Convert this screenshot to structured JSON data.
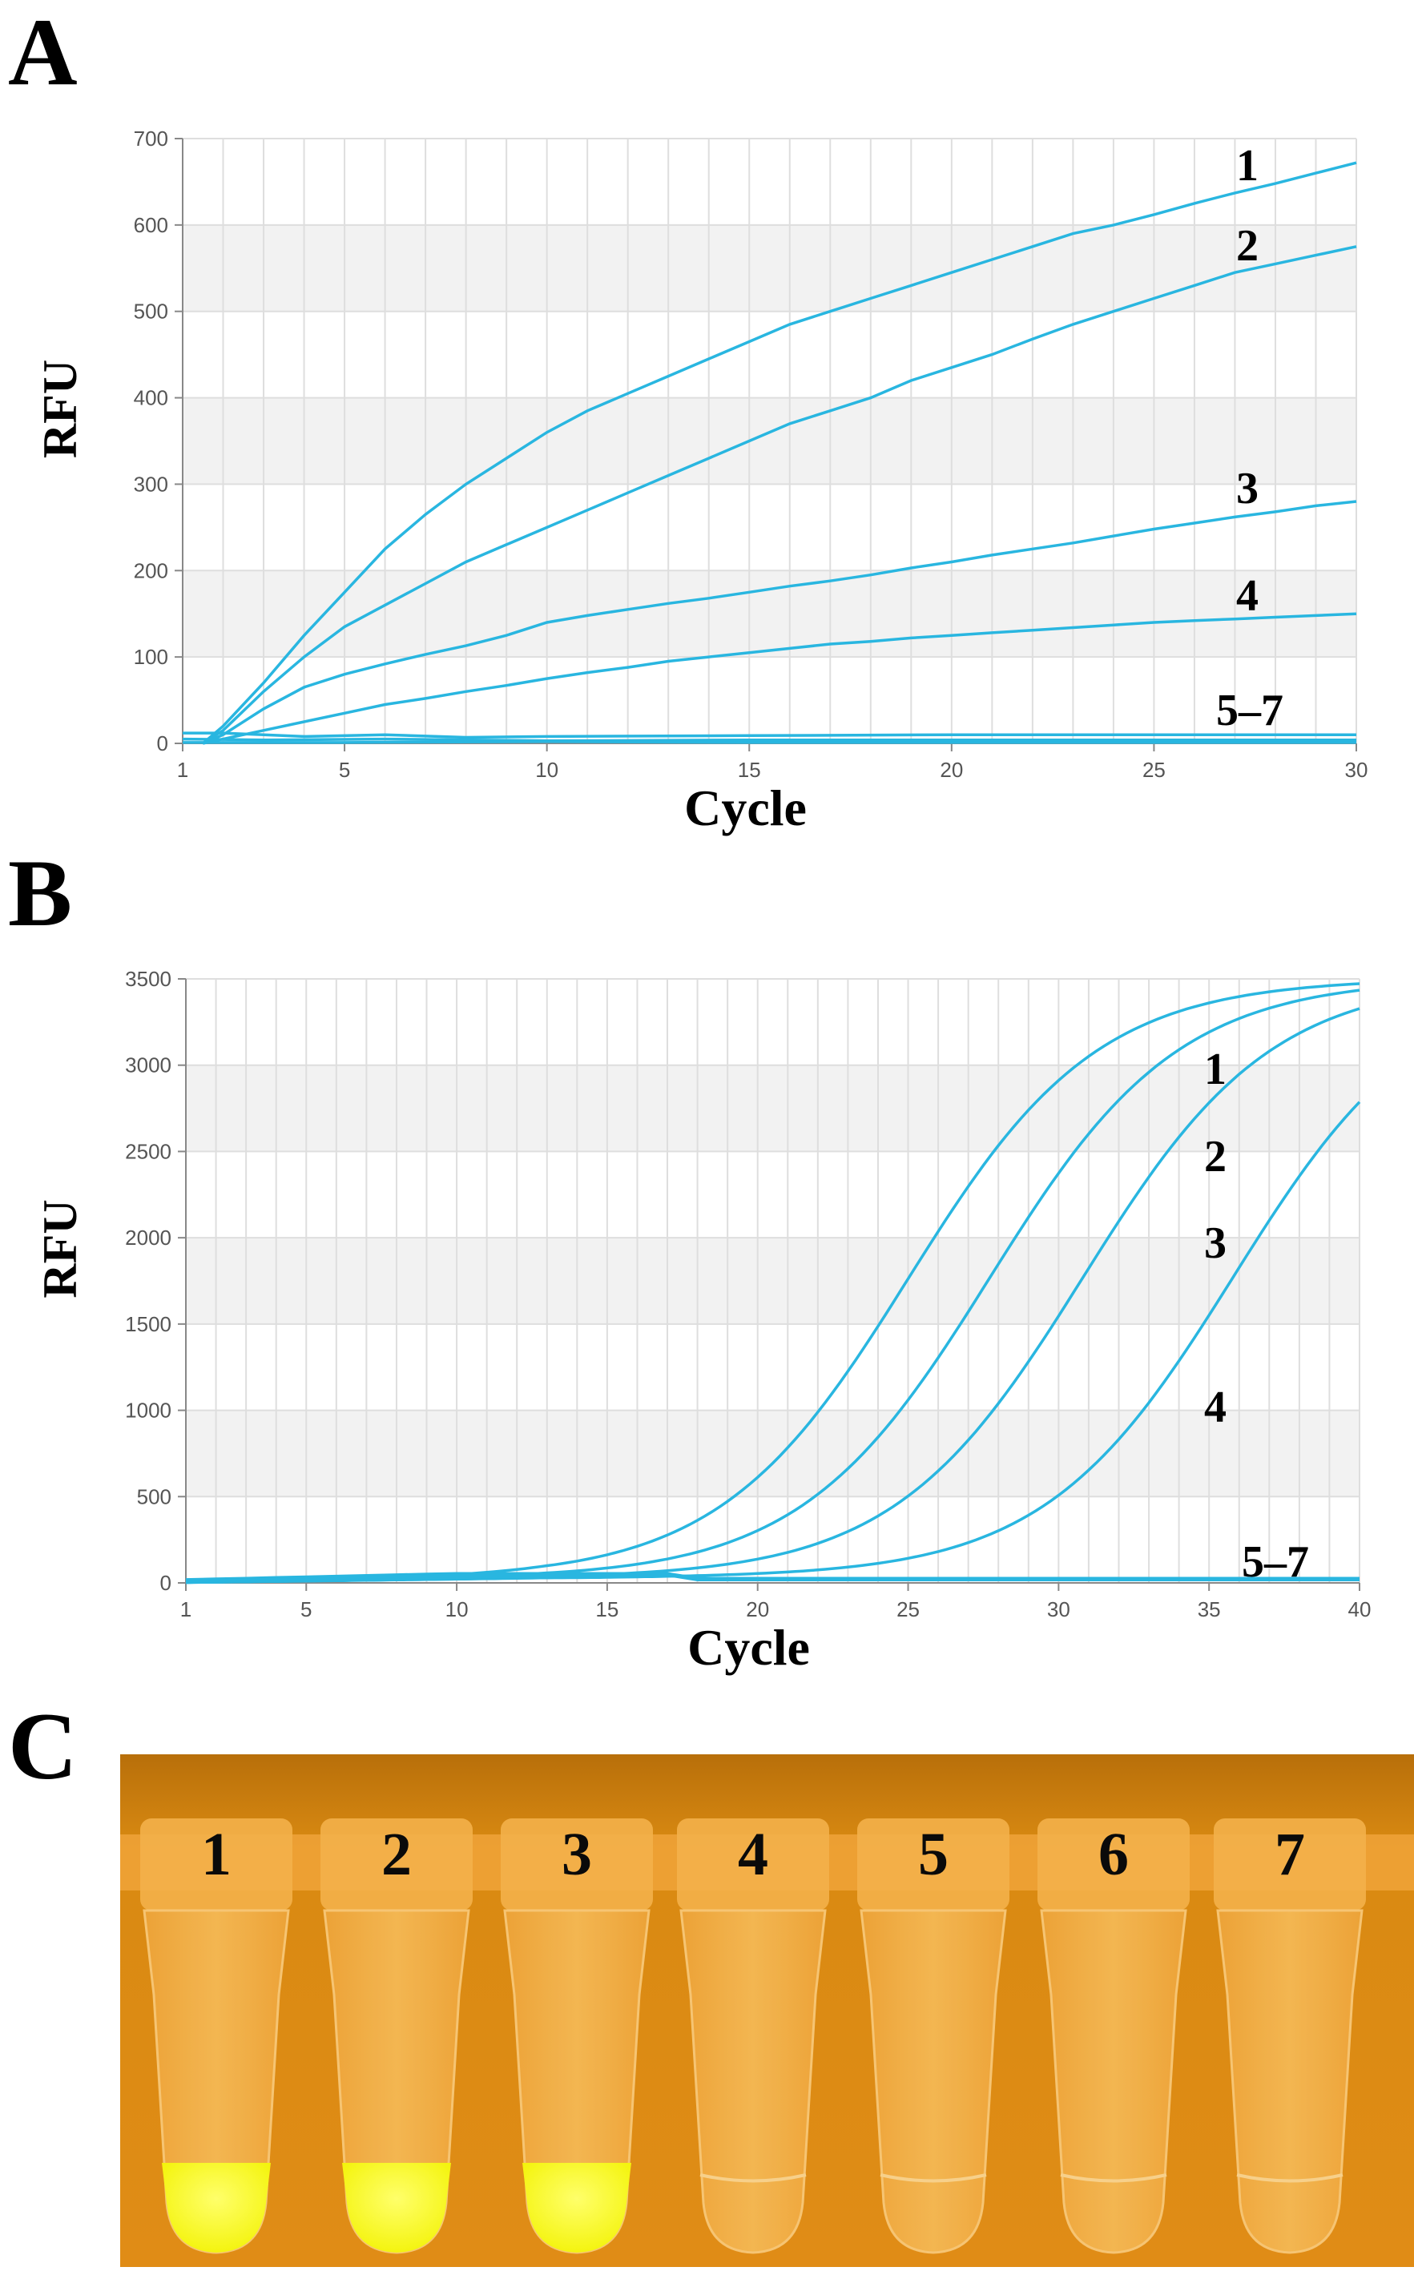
{
  "panels": {
    "a": {
      "letter": "A"
    },
    "b": {
      "letter": "B"
    },
    "c": {
      "letter": "C"
    }
  },
  "chart_data": [
    {
      "id": "A",
      "type": "line",
      "xlabel": "Cycle",
      "ylabel": "RFU",
      "xlim": [
        1,
        30
      ],
      "ylim": [
        0,
        700
      ],
      "xticks": [
        1,
        5,
        10,
        15,
        20,
        25,
        30
      ],
      "yticks": [
        0,
        100,
        200,
        300,
        400,
        500,
        600,
        700
      ],
      "grid": true,
      "line_color": "#29b6e0",
      "series": [
        {
          "label": "1",
          "points": [
            [
              1.5,
              0
            ],
            [
              2,
              20
            ],
            [
              3,
              70
            ],
            [
              4,
              125
            ],
            [
              5,
              175
            ],
            [
              6,
              225
            ],
            [
              7,
              265
            ],
            [
              8,
              300
            ],
            [
              9,
              330
            ],
            [
              10,
              360
            ],
            [
              11,
              385
            ],
            [
              12,
              405
            ],
            [
              13,
              425
            ],
            [
              14,
              445
            ],
            [
              15,
              465
            ],
            [
              16,
              485
            ],
            [
              17,
              500
            ],
            [
              18,
              515
            ],
            [
              19,
              530
            ],
            [
              20,
              545
            ],
            [
              21,
              560
            ],
            [
              22,
              575
            ],
            [
              23,
              590
            ],
            [
              24,
              600
            ],
            [
              25,
              612
            ],
            [
              26,
              625
            ],
            [
              27,
              637
            ],
            [
              28,
              648
            ],
            [
              29,
              660
            ],
            [
              30,
              672
            ]
          ]
        },
        {
          "label": "2",
          "points": [
            [
              1.5,
              0
            ],
            [
              2,
              15
            ],
            [
              3,
              60
            ],
            [
              4,
              100
            ],
            [
              5,
              135
            ],
            [
              6,
              160
            ],
            [
              7,
              185
            ],
            [
              8,
              210
            ],
            [
              9,
              230
            ],
            [
              10,
              250
            ],
            [
              11,
              270
            ],
            [
              12,
              290
            ],
            [
              13,
              310
            ],
            [
              14,
              330
            ],
            [
              15,
              350
            ],
            [
              16,
              370
            ],
            [
              17,
              385
            ],
            [
              18,
              400
            ],
            [
              19,
              420
            ],
            [
              20,
              435
            ],
            [
              21,
              450
            ],
            [
              22,
              468
            ],
            [
              23,
              485
            ],
            [
              24,
              500
            ],
            [
              25,
              515
            ],
            [
              26,
              530
            ],
            [
              27,
              545
            ],
            [
              28,
              555
            ],
            [
              29,
              565
            ],
            [
              30,
              575
            ]
          ]
        },
        {
          "label": "3",
          "points": [
            [
              1.5,
              0
            ],
            [
              2,
              10
            ],
            [
              3,
              40
            ],
            [
              4,
              65
            ],
            [
              5,
              80
            ],
            [
              6,
              92
            ],
            [
              7,
              103
            ],
            [
              8,
              113
            ],
            [
              9,
              125
            ],
            [
              10,
              140
            ],
            [
              11,
              148
            ],
            [
              12,
              155
            ],
            [
              13,
              162
            ],
            [
              14,
              168
            ],
            [
              15,
              175
            ],
            [
              16,
              182
            ],
            [
              17,
              188
            ],
            [
              18,
              195
            ],
            [
              19,
              203
            ],
            [
              20,
              210
            ],
            [
              21,
              218
            ],
            [
              22,
              225
            ],
            [
              23,
              232
            ],
            [
              24,
              240
            ],
            [
              25,
              248
            ],
            [
              26,
              255
            ],
            [
              27,
              262
            ],
            [
              28,
              268
            ],
            [
              29,
              275
            ],
            [
              30,
              280
            ]
          ]
        },
        {
          "label": "4",
          "points": [
            [
              1.5,
              0
            ],
            [
              2,
              5
            ],
            [
              3,
              15
            ],
            [
              4,
              25
            ],
            [
              5,
              35
            ],
            [
              6,
              45
            ],
            [
              7,
              52
            ],
            [
              8,
              60
            ],
            [
              9,
              67
            ],
            [
              10,
              75
            ],
            [
              11,
              82
            ],
            [
              12,
              88
            ],
            [
              13,
              95
            ],
            [
              14,
              100
            ],
            [
              15,
              105
            ],
            [
              16,
              110
            ],
            [
              17,
              115
            ],
            [
              18,
              118
            ],
            [
              19,
              122
            ],
            [
              20,
              125
            ],
            [
              21,
              128
            ],
            [
              22,
              131
            ],
            [
              23,
              134
            ],
            [
              24,
              137
            ],
            [
              25,
              140
            ],
            [
              26,
              142
            ],
            [
              27,
              144
            ],
            [
              28,
              146
            ],
            [
              29,
              148
            ],
            [
              30,
              150
            ]
          ]
        },
        {
          "label": "5–7",
          "points": [
            [
              1,
              12
            ],
            [
              2,
              12
            ],
            [
              4,
              8
            ],
            [
              6,
              10
            ],
            [
              8,
              7
            ],
            [
              10,
              8
            ],
            [
              15,
              9
            ],
            [
              20,
              10
            ],
            [
              25,
              10
            ],
            [
              30,
              10
            ]
          ]
        },
        {
          "label": "",
          "points": [
            [
              1,
              5
            ],
            [
              3,
              4
            ],
            [
              6,
              5
            ],
            [
              10,
              3
            ],
            [
              15,
              4
            ],
            [
              20,
              4
            ],
            [
              25,
              4
            ],
            [
              30,
              4
            ]
          ]
        },
        {
          "label": "",
          "points": [
            [
              1,
              1
            ],
            [
              5,
              1
            ],
            [
              10,
              2
            ],
            [
              15,
              1
            ],
            [
              20,
              1
            ],
            [
              25,
              1
            ],
            [
              30,
              1
            ]
          ]
        }
      ]
    },
    {
      "id": "B",
      "type": "line",
      "xlabel": "Cycle",
      "ylabel": "RFU",
      "xlim": [
        1,
        40
      ],
      "ylim": [
        0,
        3500
      ],
      "xticks": [
        1,
        5,
        10,
        15,
        20,
        25,
        30,
        35,
        40
      ],
      "yticks": [
        0,
        500,
        1000,
        1500,
        2000,
        2500,
        3000,
        3500
      ],
      "grid": true,
      "line_color": "#29b6e0",
      "series": [
        {
          "label": "1",
          "sigmoid": {
            "top": 3450,
            "mid": 25.0,
            "k": 0.32
          }
        },
        {
          "label": "2",
          "sigmoid": {
            "top": 3450,
            "mid": 27.7,
            "k": 0.32
          }
        },
        {
          "label": "3",
          "sigmoid": {
            "top": 3450,
            "mid": 30.8,
            "k": 0.32
          }
        },
        {
          "label": "4",
          "sigmoid": {
            "top": 3450,
            "mid": 35.8,
            "k": 0.32
          }
        },
        {
          "label": "5–7",
          "flat": 10
        },
        {
          "label": "",
          "flat": 5
        },
        {
          "label": "",
          "flat": 15
        }
      ]
    },
    {
      "id": "C",
      "type": "image",
      "tube_labels": [
        "1",
        "2",
        "3",
        "4",
        "5",
        "6",
        "7"
      ],
      "tube_fluorescence": [
        true,
        true,
        true,
        false,
        false,
        false,
        false
      ],
      "background_color": "#d98a12",
      "positive_color": "#f2f200"
    }
  ]
}
